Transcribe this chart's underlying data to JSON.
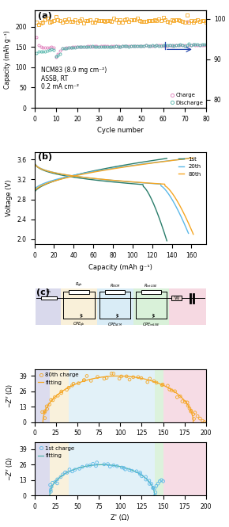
{
  "panel_a": {
    "xlabel": "Cycle number",
    "ylabel_left": "Capacity (mAh g⁻¹)",
    "ylim_left": [
      0,
      240
    ],
    "ylim_right": [
      78,
      102
    ],
    "annotation": "NCM83 (8.9 mg cm⁻²)\nASSB, RT\n0.2 mA cm⁻²",
    "charge_color": "#e07bba",
    "discharge_color": "#4db3a8",
    "ce_color": "#f5a623"
  },
  "panel_b": {
    "xlabel": "Capacity (mAh g⁻¹)",
    "ylabel": "Voltage (V)",
    "ylim": [
      1.9,
      3.75
    ],
    "xlim": [
      0,
      175
    ],
    "color_1st": "#2a7d6b",
    "color_20th": "#5bb8e8",
    "color_80th": "#f5a623"
  },
  "panel_c": {
    "xlabel": "Z' (Ω)",
    "color_80th_scatter": "#f5a623",
    "color_80th_line": "#f5a623",
    "color_1st_scatter": "#5bb8e8",
    "color_1st_line": "#4db3a8",
    "bg_purple": "#c0c0e0",
    "bg_yellow": "#f5e6c0",
    "bg_blue": "#c0e0f0",
    "bg_green": "#c0e8c0",
    "bg_pink": "#f0c0d0",
    "yticks": [
      0,
      13,
      26,
      39
    ]
  }
}
